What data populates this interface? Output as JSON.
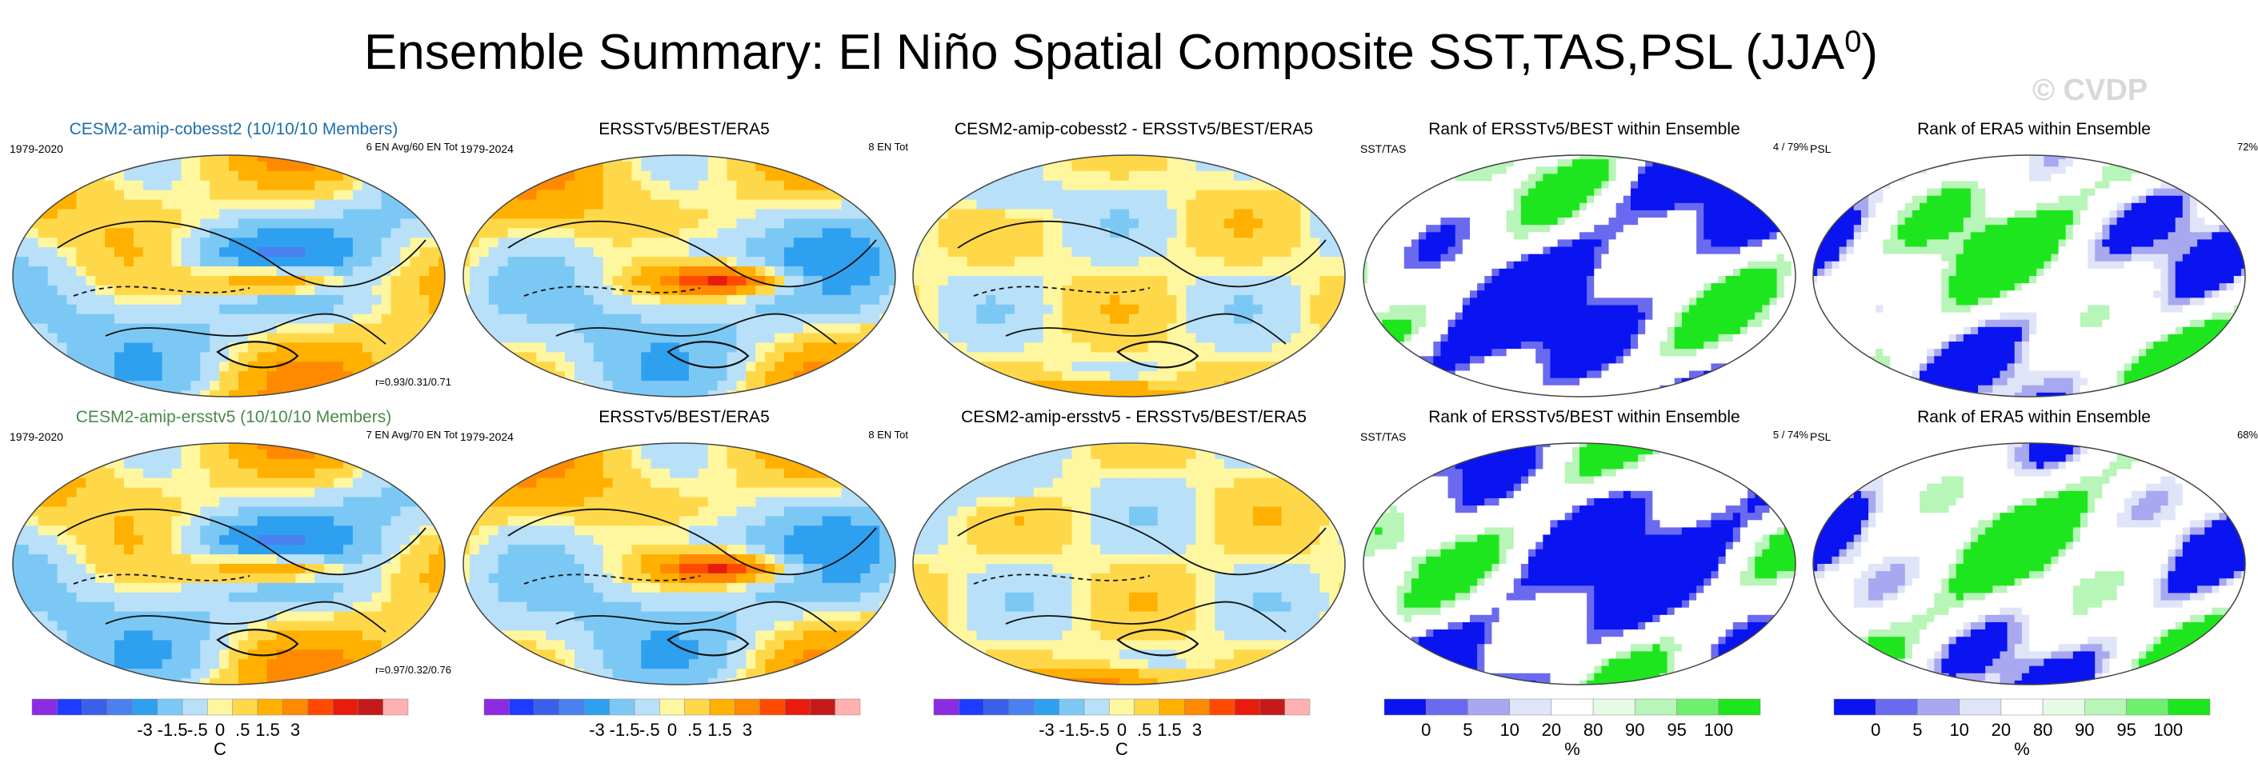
{
  "header": {
    "title": "Ensemble Summary: El Niño Spatial Composite SST,TAS,PSL (JJA",
    "title_sup": "0",
    "title_end": ")",
    "watermark": "© CVDP"
  },
  "chart_data": [
    {
      "type": "heatmap",
      "title": "CESM2-amip-cobesst2 (10/10/10 Members)",
      "title_color": "#1f6fa8",
      "left_label": "1979-2020",
      "right_label": "6 EN Avg/60 EN Tot",
      "corr_label": "r=0.93/0.31/0.71",
      "colormap": "diverging",
      "seed": 11
    },
    {
      "type": "heatmap",
      "title": "ERSSTv5/BEST/ERA5",
      "title_color": "#000000",
      "left_label": "1979-2024",
      "right_label": "8 EN Tot",
      "corr_label": "",
      "colormap": "diverging",
      "seed": 23
    },
    {
      "type": "heatmap",
      "title": "CESM2-amip-cobesst2 - ERSSTv5/BEST/ERA5",
      "title_color": "#000000",
      "left_label": "",
      "right_label": "",
      "corr_label": "",
      "colormap": "diff",
      "seed": 37
    },
    {
      "type": "heatmap",
      "title": "Rank of ERSSTv5/BEST within Ensemble",
      "title_color": "#000000",
      "left_label": "SST/TAS",
      "right_label": "4 /  79%",
      "corr_label": "",
      "colormap": "rank",
      "seed": 41
    },
    {
      "type": "heatmap",
      "title": "Rank of ERA5 within Ensemble",
      "title_color": "#000000",
      "left_label": "PSL",
      "right_label": "72%",
      "corr_label": "",
      "colormap": "rank-psl",
      "seed": 53
    },
    {
      "type": "heatmap",
      "title": "CESM2-amip-ersstv5 (10/10/10 Members)",
      "title_color": "#4a8a4a",
      "left_label": "1979-2020",
      "right_label": "7 EN Avg/70 EN Tot",
      "corr_label": "r=0.97/0.32/0.76",
      "colormap": "diverging",
      "seed": 61
    },
    {
      "type": "heatmap",
      "title": "ERSSTv5/BEST/ERA5",
      "title_color": "#000000",
      "left_label": "1979-2024",
      "right_label": "8 EN Tot",
      "corr_label": "",
      "colormap": "diverging",
      "seed": 73
    },
    {
      "type": "heatmap",
      "title": "CESM2-amip-ersstv5 - ERSSTv5/BEST/ERA5",
      "title_color": "#000000",
      "left_label": "",
      "right_label": "",
      "corr_label": "",
      "colormap": "diff",
      "seed": 83
    },
    {
      "type": "heatmap",
      "title": "Rank of ERSSTv5/BEST within Ensemble",
      "title_color": "#000000",
      "left_label": "SST/TAS",
      "right_label": "5 /  74%",
      "corr_label": "",
      "colormap": "rank",
      "seed": 97
    },
    {
      "type": "heatmap",
      "title": "Rank of ERA5 within Ensemble",
      "title_color": "#000000",
      "left_label": "PSL",
      "right_label": "68%",
      "corr_label": "",
      "colormap": "rank-psl",
      "seed": 101
    }
  ],
  "colorbars": [
    {
      "kind": "diverging",
      "ticks": [
        "-3",
        "-1.5",
        "-.5",
        "0",
        ".5",
        "1.5",
        "3"
      ],
      "unit": "C",
      "colors": [
        "#8b2be2",
        "#1e3cff",
        "#3a5fe8",
        "#4a80f0",
        "#2fa0f0",
        "#7cc8f5",
        "#b8e0f8",
        "#fff7a0",
        "#ffd84a",
        "#ffb000",
        "#ff8a00",
        "#ff4a00",
        "#e81c0c",
        "#c41a1a",
        "#ffb0b0"
      ]
    },
    {
      "kind": "diverging",
      "ticks": [
        "-3",
        "-1.5",
        "-.5",
        "0",
        ".5",
        "1.5",
        "3"
      ],
      "unit": "",
      "colors": [
        "#8b2be2",
        "#1e3cff",
        "#3a5fe8",
        "#4a80f0",
        "#2fa0f0",
        "#7cc8f5",
        "#b8e0f8",
        "#fff7a0",
        "#ffd84a",
        "#ffb000",
        "#ff8a00",
        "#ff4a00",
        "#e81c0c",
        "#c41a1a",
        "#ffb0b0"
      ]
    },
    {
      "kind": "diverging",
      "ticks": [
        "-3",
        "-1.5",
        "-.5",
        "0",
        ".5",
        "1.5",
        "3"
      ],
      "unit": "C",
      "colors": [
        "#8b2be2",
        "#1e3cff",
        "#3a5fe8",
        "#4a80f0",
        "#2fa0f0",
        "#7cc8f5",
        "#b8e0f8",
        "#fff7a0",
        "#ffd84a",
        "#ffb000",
        "#ff8a00",
        "#ff4a00",
        "#e81c0c",
        "#c41a1a",
        "#ffb0b0"
      ]
    },
    {
      "kind": "rank",
      "ticks": [
        "0",
        "5",
        "10",
        "20",
        "80",
        "90",
        "95",
        "100"
      ],
      "unit": "%",
      "colors": [
        "#0a14f0",
        "#6a6af0",
        "#a8a8f0",
        "#e0e4f8",
        "#ffffff",
        "#e6fae6",
        "#b8f5b8",
        "#6ef06e",
        "#1ee61e"
      ]
    },
    {
      "kind": "rank",
      "ticks": [
        "0",
        "5",
        "10",
        "20",
        "80",
        "90",
        "95",
        "100"
      ],
      "unit": "%",
      "colors": [
        "#0a14f0",
        "#6a6af0",
        "#a8a8f0",
        "#e0e4f8",
        "#ffffff",
        "#e6fae6",
        "#b8f5b8",
        "#6ef06e",
        "#1ee61e"
      ]
    }
  ]
}
